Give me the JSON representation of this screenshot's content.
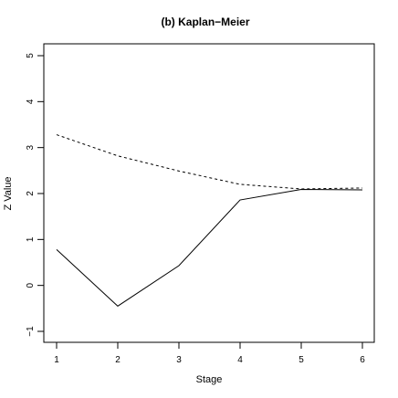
{
  "chart_data": {
    "type": "line",
    "title": "(b) Kaplan−Meier",
    "xlabel": "Stage",
    "ylabel": "Z Value",
    "x": [
      1,
      2,
      3,
      4,
      5,
      6
    ],
    "xlim": [
      1,
      6
    ],
    "ylim": [
      -1,
      5
    ],
    "xticks": [
      "1",
      "2",
      "3",
      "4",
      "5",
      "6"
    ],
    "yticks": [
      "−1",
      "0",
      "1",
      "2",
      "3",
      "4",
      "5"
    ],
    "grid": false,
    "series": [
      {
        "line_style": "dashed",
        "values": [
          3.28,
          2.82,
          2.49,
          2.2,
          2.1,
          2.12
        ]
      },
      {
        "line_style": "solid",
        "values": [
          0.78,
          -0.45,
          0.43,
          1.86,
          2.09,
          2.08
        ]
      }
    ]
  }
}
